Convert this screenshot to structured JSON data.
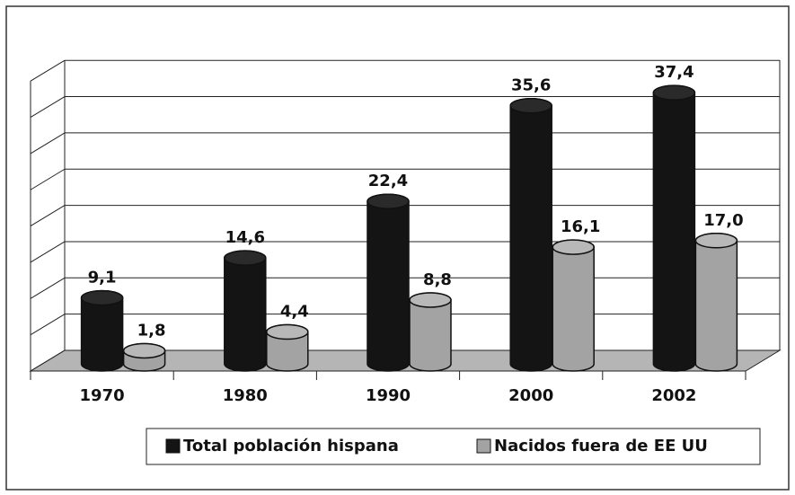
{
  "chart_data": {
    "type": "bar3d",
    "categories": [
      "1970",
      "1980",
      "1990",
      "2000",
      "2002"
    ],
    "series": [
      {
        "name": "Total población hispana",
        "color": "#141414",
        "values": [
          9.1,
          14.6,
          22.4,
          35.6,
          37.4
        ],
        "value_labels": [
          "9,1",
          "14,6",
          "22,4",
          "35,6",
          "37,4"
        ]
      },
      {
        "name": "Nacidos fuera de EE UU",
        "color": "#a3a3a3",
        "values": [
          1.8,
          4.4,
          8.8,
          16.1,
          17.0
        ],
        "value_labels": [
          "1,8",
          "4,4",
          "8,8",
          "16,1",
          "17,0"
        ]
      }
    ],
    "ylim": [
      0,
      40
    ],
    "yticks": [
      0,
      5,
      10,
      15,
      20,
      25,
      30,
      35,
      40
    ],
    "grid": true
  }
}
